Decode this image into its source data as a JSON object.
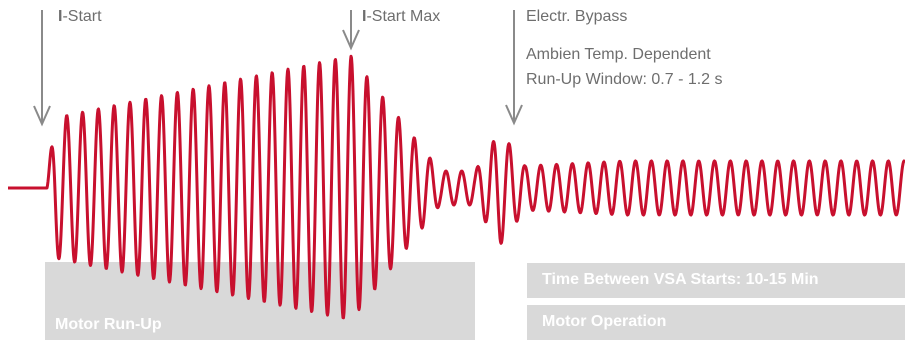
{
  "annotations": {
    "i_start": {
      "prefix": "I",
      "text": "-Start"
    },
    "i_start_max": {
      "prefix": "I",
      "text": "-Start Max"
    },
    "bypass": {
      "title": "Electr. Bypass",
      "line1": "Ambien Temp. Dependent",
      "line2": "Run-Up Window: 0.7 - 1.2 s"
    }
  },
  "bars": {
    "run_up": "Motor Run-Up",
    "between_starts": "Time Between VSA Starts: 10-15 Min",
    "operation": "Motor Operation"
  },
  "colors": {
    "waveform": "#c8102e",
    "arrow": "#8a8a8a",
    "bar": "#d9d9d9",
    "text": "#6e6e6e"
  }
}
